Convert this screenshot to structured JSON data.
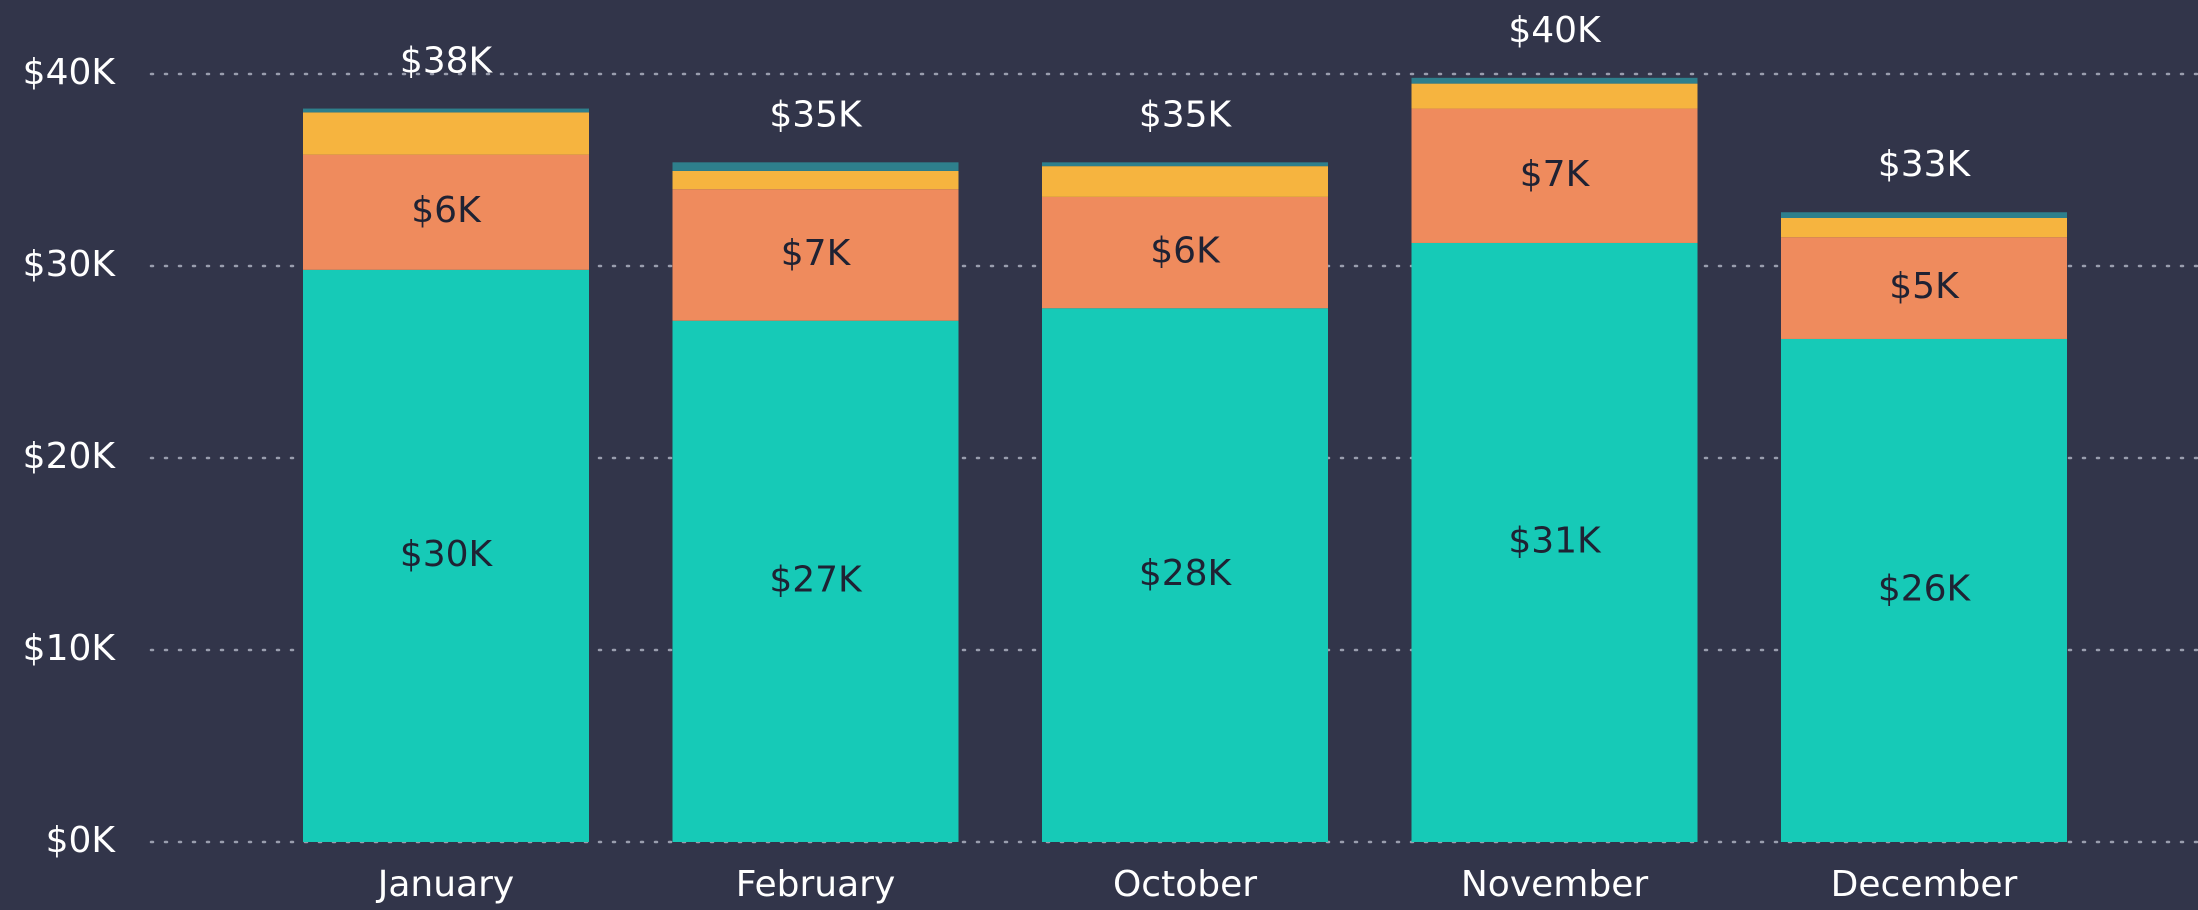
{
  "chart_data": {
    "type": "stacked_bar",
    "categories": [
      "January",
      "February",
      "October",
      "November",
      "December"
    ],
    "series": [
      {
        "color": "#16cab7",
        "values": [
          29800,
          27150,
          27800,
          31200,
          26200
        ],
        "value_labels": [
          "$30K",
          "$27K",
          "$28K",
          "$31K",
          "$26K"
        ]
      },
      {
        "color": "#ef8b5d",
        "values": [
          6000,
          6850,
          5800,
          7000,
          5300
        ],
        "value_labels": [
          "$6K",
          "$7K",
          "$6K",
          "$7K",
          "$5K"
        ]
      },
      {
        "color": "#f6b43f",
        "values": [
          2200,
          950,
          1600,
          1300,
          1000
        ]
      },
      {
        "color": "#2e7f8c",
        "values": [
          200,
          450,
          200,
          300,
          300
        ]
      }
    ],
    "totals": {
      "values": [
        38200,
        35400,
        35400,
        39800,
        32800
      ],
      "value_labels": [
        "$38K",
        "$35K",
        "$35K",
        "$40K",
        "$33K"
      ]
    },
    "ylim": [
      0,
      40000
    ],
    "yticks": [
      {
        "value": 0,
        "label": "$0K"
      },
      {
        "value": 10000,
        "label": "$10K"
      },
      {
        "value": 20000,
        "label": "$20K"
      },
      {
        "value": 30000,
        "label": "$30K"
      },
      {
        "value": 40000,
        "label": "$40K"
      }
    ],
    "grid": true
  }
}
